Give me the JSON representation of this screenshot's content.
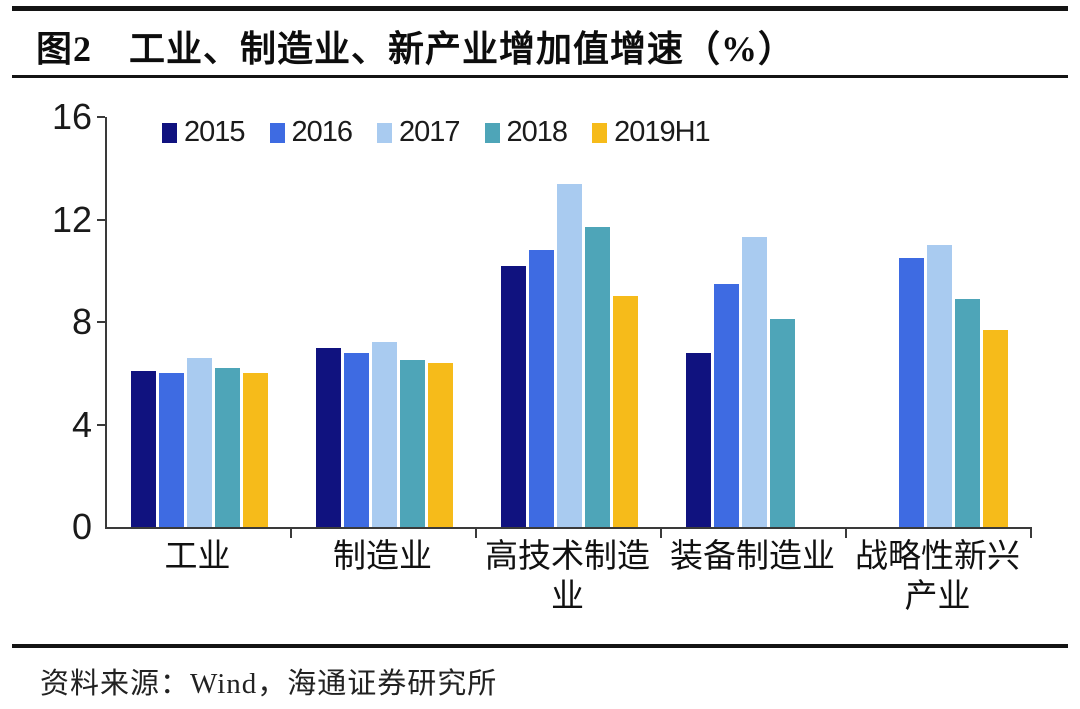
{
  "page": {
    "title": "图2　工业、制造业、新产业增加值增速（%）",
    "source": "资料来源：Wind，海通证券研究所"
  },
  "chart_data": {
    "type": "bar",
    "title": "图2 工业、制造业、新产业增加值增速（%）",
    "categories": [
      "工业",
      "制造业",
      "高技术制造业",
      "装备制造业",
      "战略性新兴产业"
    ],
    "series": [
      {
        "name": "2015",
        "color": "#10127f",
        "values": [
          6.1,
          7.0,
          10.2,
          6.8,
          null
        ]
      },
      {
        "name": "2016",
        "color": "#3e6be2",
        "values": [
          6.0,
          6.8,
          10.8,
          9.5,
          10.5
        ]
      },
      {
        "name": "2017",
        "color": "#a9cbf0",
        "values": [
          6.6,
          7.2,
          13.4,
          11.3,
          11.0
        ]
      },
      {
        "name": "2018",
        "color": "#4ea5b8",
        "values": [
          6.2,
          6.5,
          11.7,
          8.1,
          8.9
        ]
      },
      {
        "name": "2019H1",
        "color": "#f6bb1a",
        "values": [
          6.0,
          6.4,
          9.0,
          null,
          7.7
        ]
      }
    ],
    "xlabel": "",
    "ylabel": "",
    "ylim": [
      0,
      16
    ],
    "yticks": [
      16,
      12,
      8,
      4,
      0
    ],
    "grid": false,
    "legend_position": "top",
    "axis_color": "#3a3a3a"
  }
}
